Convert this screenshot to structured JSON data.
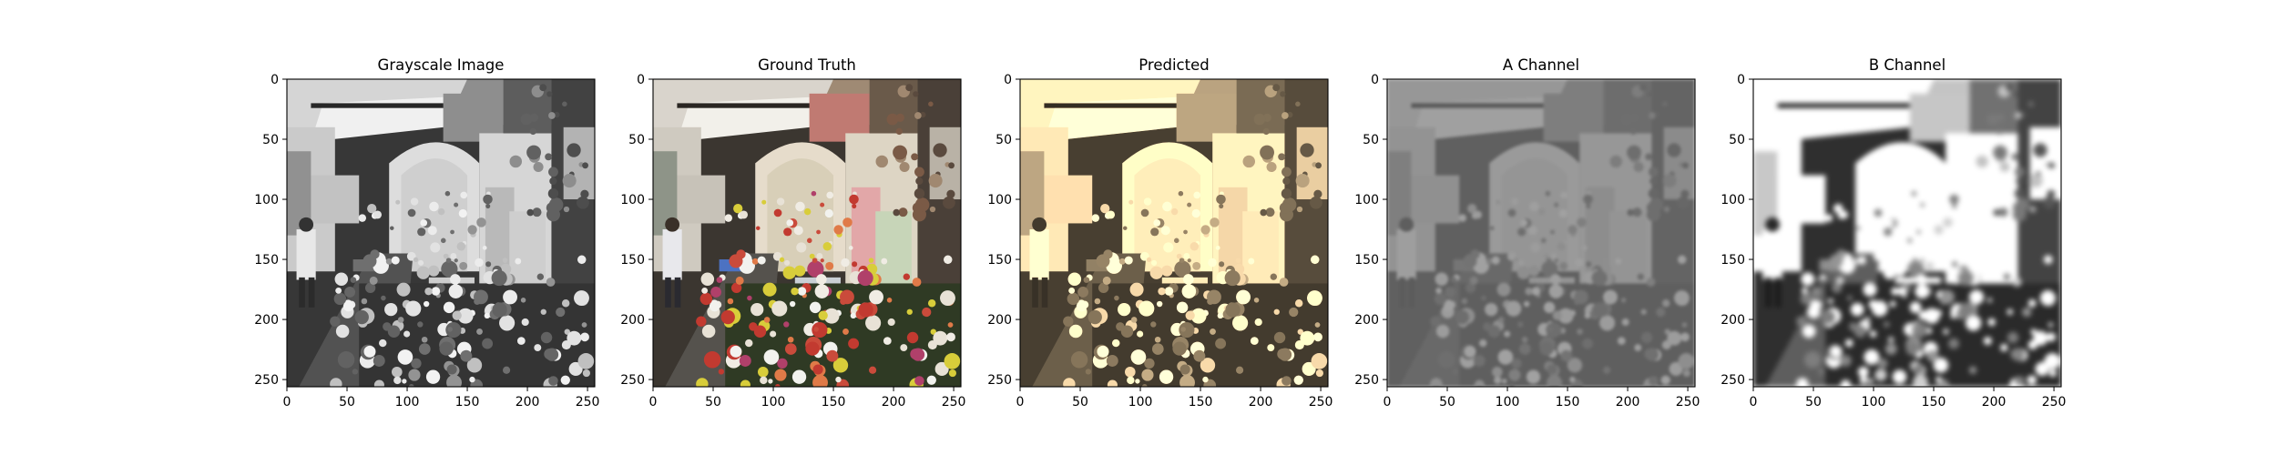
{
  "figure": {
    "panels": [
      {
        "title": "Grayscale Image",
        "mode": "gray"
      },
      {
        "title": "Ground Truth",
        "mode": "color"
      },
      {
        "title": "Predicted",
        "mode": "sepia"
      },
      {
        "title": "A Channel",
        "mode": "achannel"
      },
      {
        "title": "B Channel",
        "mode": "bchannel"
      }
    ],
    "x_ticks": [
      "0",
      "50",
      "100",
      "150",
      "200",
      "250"
    ],
    "y_ticks": [
      "0",
      "50",
      "100",
      "150",
      "200",
      "250"
    ],
    "axis_range": [
      0,
      256
    ]
  }
}
